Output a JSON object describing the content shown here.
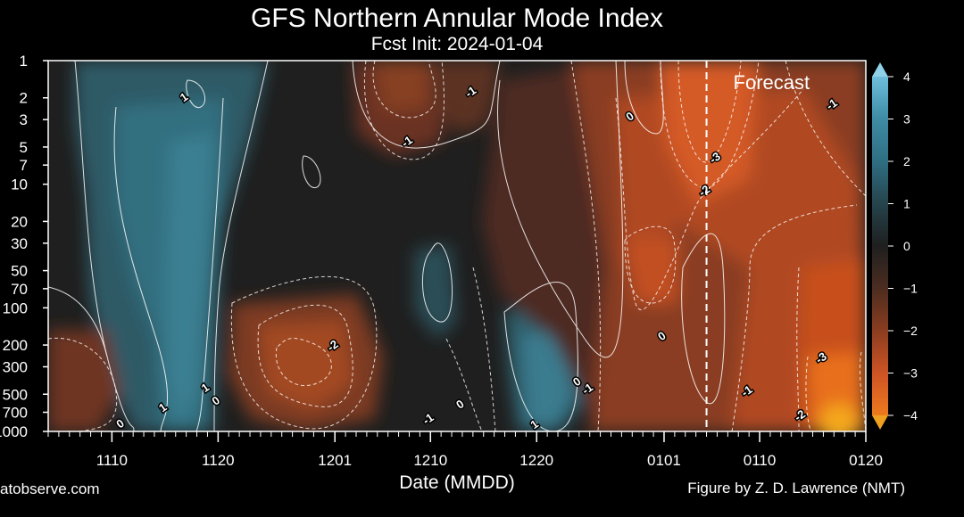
{
  "chart_data": {
    "type": "heatmap",
    "title": "GFS Northern Annular Mode Index",
    "subtitle": "Fcst Init: 2024-01-04",
    "xlabel": "Date (MMDD)",
    "ylabel": "",
    "x_ticks": [
      "1110",
      "1120",
      "1201",
      "1210",
      "1220",
      "0101",
      "0110",
      "0120"
    ],
    "x_tick_days": [
      10,
      20,
      31,
      40,
      50,
      62,
      71,
      81
    ],
    "x_range_days": [
      4,
      81
    ],
    "y_scale": "log-pressure",
    "y_ticks": [
      "1",
      "2",
      "3",
      "5",
      "7",
      "10",
      "20",
      "30",
      "50",
      "70",
      "100",
      "200",
      "300",
      "500",
      "700",
      "1000"
    ],
    "y_range": [
      1,
      1000
    ],
    "forecast_start_day": 66,
    "forecast_label": "Forecast",
    "colorbar": {
      "ticks": [
        "4",
        "3",
        "2",
        "1",
        "0",
        "−1",
        "−2",
        "−3",
        "−4"
      ],
      "range": [
        -4,
        4
      ]
    },
    "contour_labels": [
      {
        "text": "1",
        "day": 17,
        "p": 2.1
      },
      {
        "text": "-1",
        "day": 38,
        "p": 4.8
      },
      {
        "text": "-1",
        "day": 44,
        "p": 1.9
      },
      {
        "text": "0",
        "day": 59,
        "p": 3.0
      },
      {
        "text": "-3",
        "day": 67,
        "p": 6.5
      },
      {
        "text": "-2",
        "day": 66,
        "p": 12
      },
      {
        "text": "-1",
        "day": 78,
        "p": 2.4
      },
      {
        "text": "-2",
        "day": 31,
        "p": 215
      },
      {
        "text": "0",
        "day": 62,
        "p": 180
      },
      {
        "text": "-3",
        "day": 77,
        "p": 270
      },
      {
        "text": "1",
        "day": 19,
        "p": 470
      },
      {
        "text": "0",
        "day": 20,
        "p": 600
      },
      {
        "text": "1",
        "day": 15,
        "p": 680
      },
      {
        "text": "0",
        "day": 11,
        "p": 920
      },
      {
        "text": "-1",
        "day": 40,
        "p": 840
      },
      {
        "text": "0",
        "day": 43,
        "p": 640
      },
      {
        "text": "1",
        "day": 50,
        "p": 930
      },
      {
        "text": "0",
        "day": 54,
        "p": 420
      },
      {
        "text": "-1",
        "day": 55,
        "p": 480
      },
      {
        "text": "-1",
        "day": 70,
        "p": 500
      },
      {
        "text": "-2",
        "day": 75,
        "p": 790
      }
    ],
    "legend": "colorbar right"
  },
  "credits": {
    "left": "atobserve.com",
    "right": "Figure by Z. D. Lawrence (NMT)"
  },
  "colors": {
    "background": "#000000",
    "positive": "#2f6e82",
    "neutral": "#1e1e1e",
    "negative": "#d45424",
    "extreme_positive": "#7fc7e0",
    "extreme_negative": "#f0a020"
  }
}
